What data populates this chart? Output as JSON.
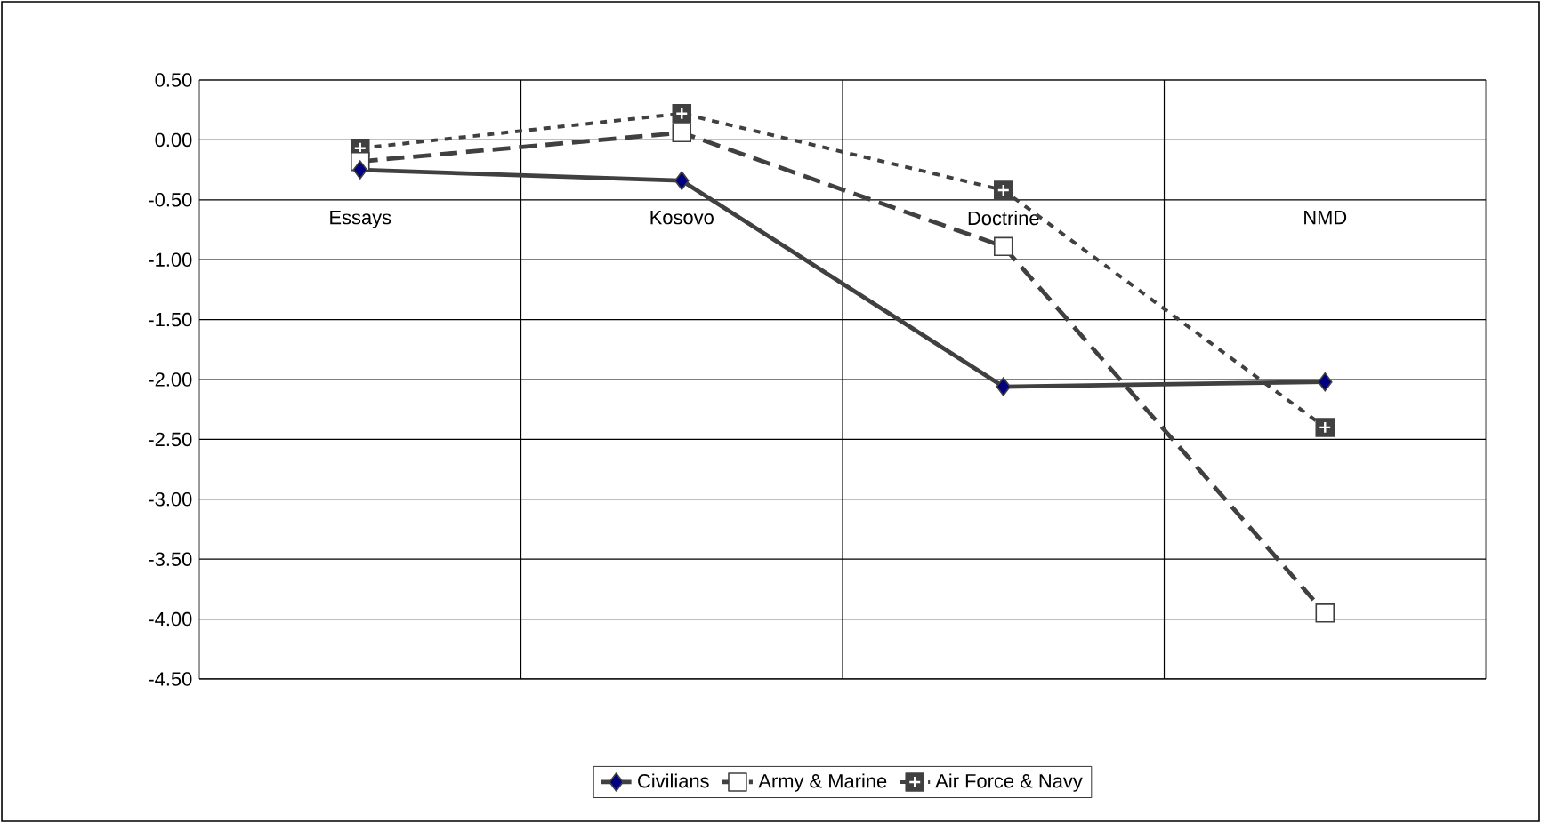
{
  "chart_data": {
    "type": "line",
    "categories": [
      "Essays",
      "Kosovo",
      "Doctrine",
      "NMD"
    ],
    "series": [
      {
        "name": "Civilians",
        "color": "#404040",
        "marker": "diamond",
        "colors": [
          "#000080",
          "#000080",
          "#000080",
          "#000080"
        ],
        "line_style": "solid",
        "values": [
          -0.25,
          -0.34,
          -2.06,
          -2.02
        ]
      },
      {
        "name": "Army & Marine",
        "color": "#404040",
        "marker": "square",
        "colors": [
          "#ffffff",
          "#ffffff",
          "#ffffff",
          "#ffffff"
        ],
        "line_style": "dashed",
        "values": [
          -0.18,
          0.06,
          -0.89,
          -3.95
        ]
      },
      {
        "name": "Air Force & Navy",
        "color": "#404040",
        "marker": "square",
        "colors": [
          "#404040",
          "#404040",
          "#404040",
          "#404040"
        ],
        "line_style": "dotted",
        "values": [
          -0.07,
          0.22,
          -0.42,
          -2.4
        ]
      }
    ],
    "ylim": [
      -4.5,
      0.5
    ],
    "yticks": [
      {
        "value": 0.5,
        "label": "0.50"
      },
      {
        "value": 0,
        "label": "0.00"
      },
      {
        "value": -0.5,
        "label": "-0.50"
      },
      {
        "value": -1,
        "label": "-1.00"
      },
      {
        "value": -1.5,
        "label": "-1.50"
      },
      {
        "value": -2,
        "label": "-2.00"
      },
      {
        "value": -2.5,
        "label": "-2.50"
      },
      {
        "value": -3,
        "label": "-3.00"
      },
      {
        "value": -3.5,
        "label": "-3.50"
      },
      {
        "value": -4,
        "label": "-4.00"
      },
      {
        "value": -4.5,
        "label": "-4.50"
      }
    ],
    "grid": true,
    "legend": "bottom"
  }
}
